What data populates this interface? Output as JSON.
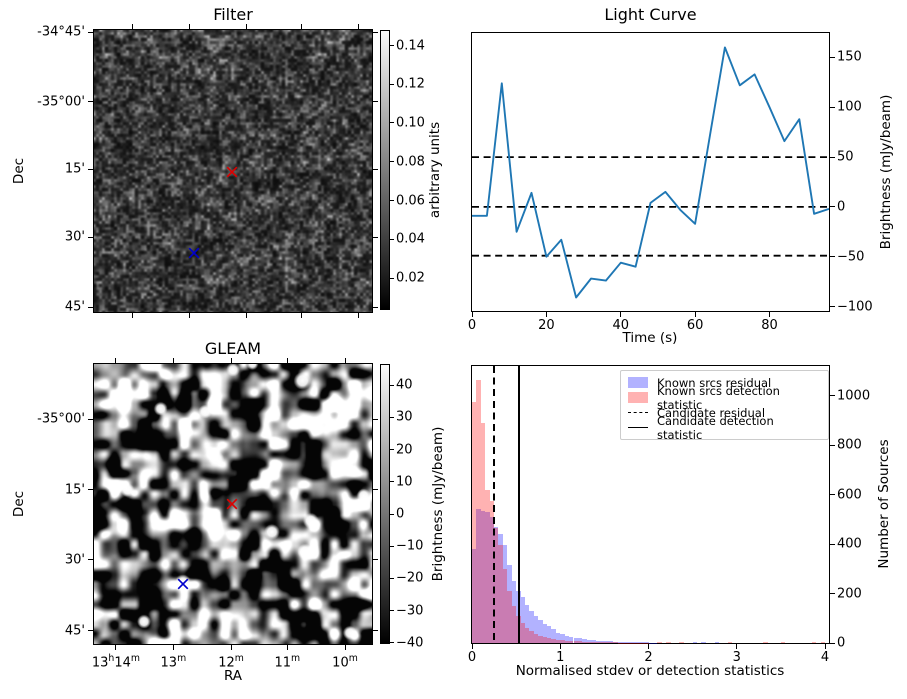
{
  "figure": {
    "background": "#ffffff",
    "kind": "matplotlib 2x2 figure"
  },
  "chart_data": [
    {
      "id": "filter",
      "type": "heatmap",
      "title": "Filter",
      "xlabel": "",
      "ylabel": "Dec",
      "description": "grayscale fine-grained noise map (filtered radio image)",
      "colormap": "gray",
      "colorbar": {
        "label": "arbitrary units",
        "ticks": [
          {
            "pos": 5.6,
            "label": "0.14"
          },
          {
            "pos": 19.4,
            "label": "0.12"
          },
          {
            "pos": 33.2,
            "label": "0.10"
          },
          {
            "pos": 47.1,
            "label": "0.08"
          },
          {
            "pos": 60.9,
            "label": "0.06"
          },
          {
            "pos": 74.7,
            "label": "0.04"
          },
          {
            "pos": 88.6,
            "label": "0.02"
          }
        ]
      },
      "yticks": [
        {
          "pos": 1.1,
          "label": "-34°45'"
        },
        {
          "pos": 25.6,
          "label": "-35°00'"
        },
        {
          "pos": 49.4,
          "label": "15'"
        },
        {
          "pos": 73.4,
          "label": "30'"
        },
        {
          "pos": 97.9,
          "label": "45'"
        }
      ],
      "xticks": [
        {
          "pos": 14.2,
          "label": ""
        },
        {
          "pos": 34.6,
          "label": ""
        },
        {
          "pos": 54.9,
          "label": ""
        },
        {
          "pos": 74.5,
          "label": ""
        },
        {
          "pos": 94.8,
          "label": ""
        }
      ],
      "markers": [
        {
          "x": 49.6,
          "y": 50.2,
          "symbol": "x",
          "color": "#dd0000",
          "name": "candidate-marker-red"
        },
        {
          "x": 36.1,
          "y": 79.0,
          "symbol": "x",
          "color": "#0000cc",
          "name": "comparison-marker-blue"
        }
      ],
      "noise": {
        "seed": 7,
        "cells": [
          3,
          6,
          13
        ],
        "weights": [
          0.5,
          0.3,
          0.2
        ],
        "curve": "filter",
        "spots": []
      }
    },
    {
      "id": "light-curve",
      "type": "line",
      "title": "Light Curve",
      "xlabel": "Time (s)",
      "ylabel": "Brightness (mJy/beam)",
      "line_color": "#1f77b4",
      "x": [
        0,
        4,
        8,
        12,
        16,
        20,
        24,
        28,
        32,
        36,
        40,
        44,
        48,
        52,
        56,
        60,
        64,
        68,
        72,
        76,
        80,
        84,
        88,
        92,
        96
      ],
      "y": [
        -9,
        -9,
        124,
        -25,
        14,
        -50,
        -33,
        -91,
        -72,
        -74,
        -56,
        -60,
        4,
        15,
        -3,
        -17,
        72,
        160,
        122,
        133,
        100,
        66,
        88,
        -7,
        -2
      ],
      "thresholds": [
        50,
        0,
        -49
      ],
      "xlim": [
        0,
        96
      ],
      "ylim": [
        -104.5,
        174.5
      ],
      "xticks": [
        0,
        20,
        40,
        60,
        80
      ],
      "yticks": [
        150,
        100,
        50,
        0,
        -50,
        -100
      ],
      "grid": false
    },
    {
      "id": "gleam",
      "type": "heatmap",
      "title": "GLEAM",
      "xlabel": "RA",
      "ylabel": "Dec",
      "description": "grayscale blobby sky map with bright compact sources (GLEAM survey cutout)",
      "colormap": "gray",
      "colorbar": {
        "label": "Brightness (mJy/beam)",
        "ticks": [
          {
            "pos": 7.6,
            "label": "40"
          },
          {
            "pos": 19.1,
            "label": "30"
          },
          {
            "pos": 30.6,
            "label": "20"
          },
          {
            "pos": 42.1,
            "label": "10"
          },
          {
            "pos": 53.6,
            "label": "0"
          },
          {
            "pos": 65.1,
            "label": "−10"
          },
          {
            "pos": 76.6,
            "label": "−20"
          },
          {
            "pos": 88.1,
            "label": "−30"
          },
          {
            "pos": 99.6,
            "label": "−40"
          }
        ]
      },
      "yticks": [
        {
          "pos": 19.9,
          "label": "-35°00'"
        },
        {
          "pos": 45.0,
          "label": "15'"
        },
        {
          "pos": 69.8,
          "label": "30'"
        },
        {
          "pos": 95.0,
          "label": "45'"
        }
      ],
      "xticks": [
        {
          "pos": 8.2,
          "label": "13h14m",
          "sup": true
        },
        {
          "pos": 28.7,
          "label": "13m",
          "sup": true
        },
        {
          "pos": 49.3,
          "label": "12m",
          "sup": true
        },
        {
          "pos": 69.4,
          "label": "11m",
          "sup": true
        },
        {
          "pos": 90.0,
          "label": "10m",
          "sup": true
        }
      ],
      "markers": [
        {
          "x": 49.6,
          "y": 50.0,
          "symbol": "x",
          "color": "#dd0000",
          "name": "candidate-marker-red"
        },
        {
          "x": 32.1,
          "y": 78.3,
          "symbol": "x",
          "color": "#0000cc",
          "name": "comparison-marker-blue"
        }
      ],
      "noise": {
        "seed": 21,
        "cells": [
          10,
          20
        ],
        "weights": [
          0.55,
          0.45
        ],
        "curve": "gleam",
        "spots": [
          [
            50,
            2,
            7
          ],
          [
            57,
            0,
            6
          ],
          [
            75,
            6,
            9
          ],
          [
            24,
            16,
            7
          ],
          [
            40,
            17,
            7
          ],
          [
            44,
            34,
            8
          ],
          [
            12,
            45,
            7
          ],
          [
            97,
            47,
            7
          ],
          [
            64,
            60,
            8
          ],
          [
            78,
            56,
            8
          ],
          [
            76,
            67,
            8
          ],
          [
            32,
            78,
            8
          ],
          [
            18,
            92,
            7
          ],
          [
            92,
            96,
            7
          ]
        ]
      }
    },
    {
      "id": "histogram",
      "type": "bar",
      "title": "",
      "xlabel": "Normalised stdev or detection statistics",
      "ylabel": "Number of Sources",
      "bin_width": 0.05,
      "bin_start": 0,
      "xlim": [
        0,
        4.045
      ],
      "ylim": [
        0,
        1120
      ],
      "xticks": [
        0,
        1,
        2,
        3,
        4
      ],
      "yticks": [
        0,
        200,
        400,
        600,
        800,
        1000
      ],
      "series": [
        {
          "name": "Known srcs residual",
          "color": "rgba(0,0,255,0.3)",
          "values": [
            380,
            542,
            535,
            528,
            508,
            470,
            442,
            395,
            315,
            250,
            210,
            188,
            155,
            128,
            108,
            94,
            75,
            68,
            55,
            42,
            38,
            30,
            26,
            22,
            19,
            16,
            14,
            12,
            10,
            9,
            8,
            7,
            6,
            5,
            5,
            4,
            4,
            3,
            3,
            3,
            2,
            2,
            0,
            0,
            0,
            0,
            0,
            0,
            0,
            0,
            5,
            0,
            4,
            0,
            0,
            4,
            0,
            0,
            0,
            0,
            0,
            0,
            0,
            0,
            0,
            0,
            0,
            0,
            0,
            0,
            0,
            0,
            0,
            0,
            0,
            0,
            0,
            0,
            0,
            0
          ]
        },
        {
          "name": "Known srcs detection statistic",
          "color": "rgba(255,0,0,0.3)",
          "values": [
            975,
            1065,
            890,
            620,
            575,
            465,
            395,
            300,
            210,
            150,
            110,
            82,
            62,
            48,
            38,
            30,
            25,
            20,
            17,
            14,
            12,
            10,
            9,
            8,
            7,
            6,
            5,
            5,
            4,
            4,
            3,
            3,
            3,
            2,
            2,
            2,
            2,
            2,
            2,
            2,
            0,
            0,
            5,
            0,
            4,
            0,
            0,
            4,
            0,
            0,
            0,
            0,
            0,
            0,
            0,
            0,
            0,
            0,
            4,
            0,
            0,
            0,
            0,
            0,
            0,
            0,
            4,
            0,
            0,
            0,
            4,
            0,
            0,
            0,
            0,
            0,
            0,
            5,
            0,
            4
          ]
        }
      ],
      "vlines": [
        {
          "name": "Candidate residual",
          "x": 0.24,
          "style": "dashed",
          "color": "#000000"
        },
        {
          "name": "Candidate detection statistic",
          "x": 0.52,
          "style": "solid",
          "color": "#000000"
        }
      ],
      "legend": [
        {
          "label": "Known srcs residual",
          "swatch": "patch",
          "color": "rgba(0,0,255,0.3)"
        },
        {
          "label": "Known srcs detection statistic",
          "swatch": "patch",
          "color": "rgba(255,0,0,0.3)"
        },
        {
          "label": "Candidate residual",
          "swatch": "dashed-line",
          "color": "#000000"
        },
        {
          "label": "Candidate detection statistic",
          "swatch": "solid-line",
          "color": "#000000"
        }
      ],
      "legend_position": "upper center-right"
    }
  ]
}
